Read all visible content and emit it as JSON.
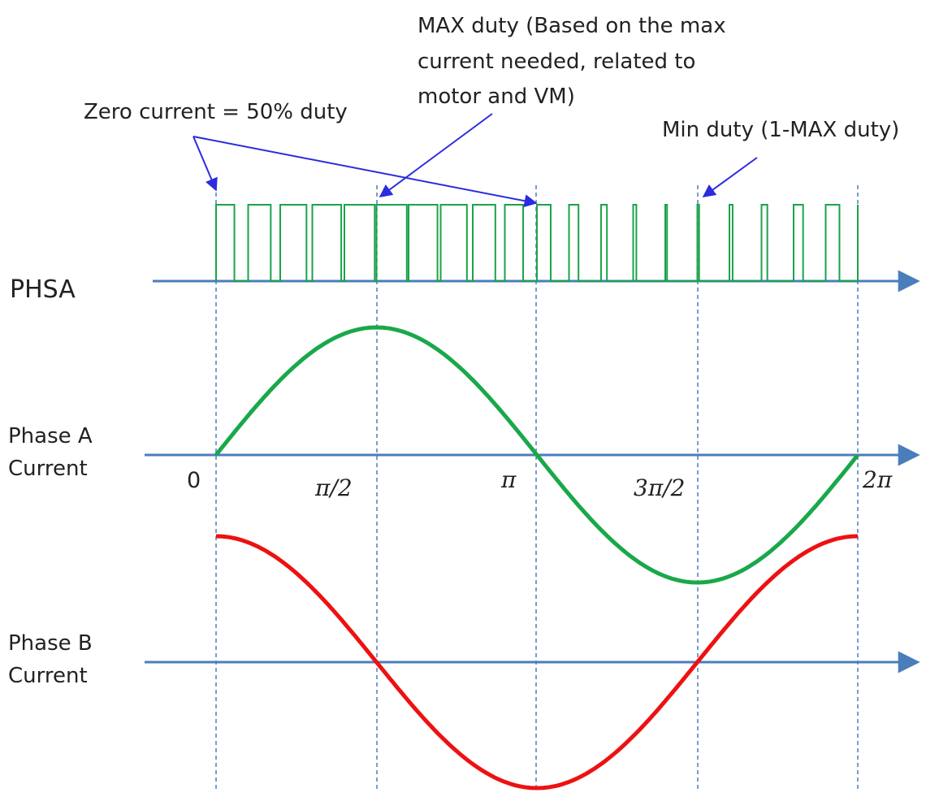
{
  "colors": {
    "axis": "#4a7ebb",
    "pwm": "#1aa34a",
    "phase_a": "#19a84a",
    "phase_b": "#ee1111",
    "annotation_arrow": "#2b2bdf",
    "guide": "#4a7ebb",
    "text": "#222222"
  },
  "labels": {
    "phsa": "PHSA",
    "phase_a_line1": "Phase A",
    "phase_a_line2": "Current",
    "phase_b_line1": "Phase B",
    "phase_b_line2": "Current"
  },
  "ticks": [
    "0",
    "π/2",
    "π",
    "3π/2",
    "2π"
  ],
  "annotations": {
    "zero_current": "Zero current = 50% duty",
    "max_duty_line1": "MAX duty (Based on the max",
    "max_duty_line2": "current needed, related to",
    "max_duty_line3": "motor and VM)",
    "min_duty": "Min duty (1-MAX duty)"
  },
  "pwm": {
    "periods_per_cycle": 20,
    "duty_center": 0.5,
    "duty_amplitude": 0.45
  },
  "waveforms": {
    "phase_a": "sin",
    "phase_b": "cos"
  },
  "icons": [
    "arrow-right-icon"
  ]
}
